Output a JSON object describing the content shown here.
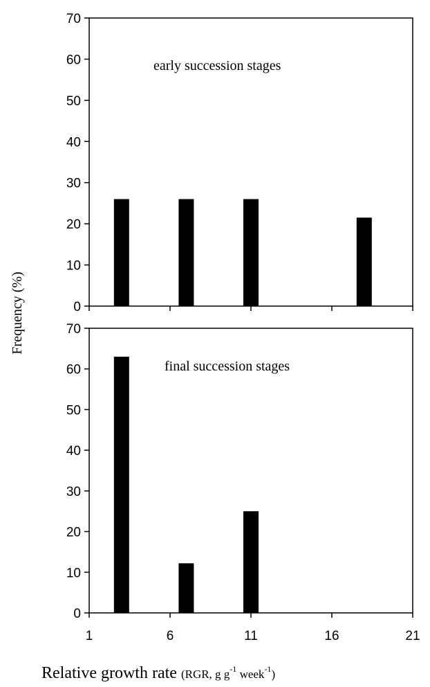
{
  "chart_data": [
    {
      "type": "bar",
      "annotation": "early succession  stages",
      "x": [
        3,
        7,
        11,
        18
      ],
      "values": [
        26,
        26,
        26,
        21.5
      ],
      "xlim": [
        1,
        21
      ],
      "ylim": [
        0,
        70
      ],
      "yticks": [
        "0",
        "10",
        "20",
        "30",
        "40",
        "50",
        "60",
        "70"
      ],
      "bar_color": "#000000"
    },
    {
      "type": "bar",
      "annotation": "final succession  stages",
      "x": [
        3,
        7,
        11,
        18
      ],
      "values": [
        63,
        12.2,
        25,
        0
      ],
      "xlim": [
        1,
        21
      ],
      "ylim": [
        0,
        70
      ],
      "yticks": [
        "0",
        "10",
        "20",
        "30",
        "40",
        "50",
        "60",
        "70"
      ],
      "xticks": [
        "1",
        "6",
        "11",
        "16",
        "21"
      ],
      "bar_color": "#000000"
    }
  ],
  "ylabel": "Frequency (%)",
  "xlabel": {
    "main": "Relative growth rate ",
    "paren_a": "(RGR, g g",
    "sup_a": "-1",
    "paren_b": " week",
    "sup_b": "-1",
    "paren_c": ")"
  }
}
